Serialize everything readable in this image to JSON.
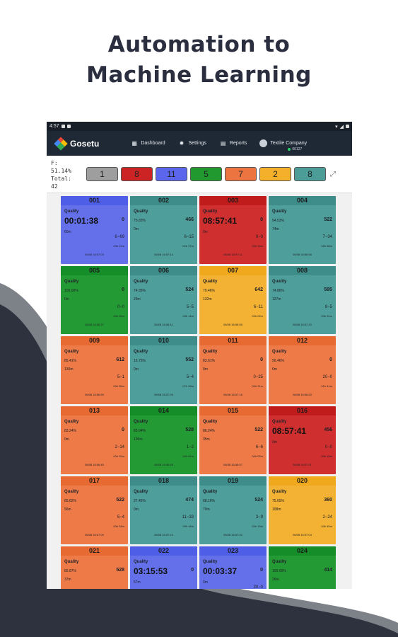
{
  "headline": {
    "line1": "Automation to",
    "line2": "Machine Learning"
  },
  "statusbar": {
    "time": "4:57"
  },
  "app": {
    "brand": "Gosetu",
    "nav": [
      {
        "label": "Dashboard",
        "icon": "grid-icon"
      },
      {
        "label": "Settings",
        "icon": "gear-icon"
      },
      {
        "label": "Reports",
        "icon": "report-icon"
      }
    ],
    "company": "Textile Company",
    "user_id": "00127"
  },
  "summary": {
    "f_line1": "F:",
    "f_line2": "51.14%",
    "total_label": "Total:",
    "total_value": "42",
    "chips": [
      {
        "value": "1",
        "color": "#9e9e9e"
      },
      {
        "value": "8",
        "color": "#cc2424"
      },
      {
        "value": "11",
        "color": "#5b66ec"
      },
      {
        "value": "5",
        "color": "#21992f"
      },
      {
        "value": "7",
        "color": "#ec7440"
      },
      {
        "value": "2",
        "color": "#f4b02a"
      },
      {
        "value": "8",
        "color": "#4c9c98"
      }
    ]
  },
  "cards": [
    {
      "id": "001",
      "color": "blue",
      "quality": "Quality",
      "timer": "00:01:38",
      "minutes": "60m",
      "count": "0",
      "ratio": "6−69",
      "dur": "03h 19m",
      "ts": "06/08 16:57:03"
    },
    {
      "id": "002",
      "color": "teal",
      "quality": "Quality",
      "pct": "75.82%",
      "minutes": "0m",
      "count": "466",
      "ratio": "6−15",
      "dur": "02h 37m",
      "ts": "06/08 16:57:14"
    },
    {
      "id": "003",
      "color": "red",
      "quality": "Quality",
      "timer": "08:57:41",
      "minutes": "0m",
      "count": "0",
      "ratio": "0−0",
      "dur": "09h 39m",
      "ts": "06/08 16:57:11"
    },
    {
      "id": "004",
      "color": "teal",
      "quality": "Quality",
      "pct": "94.53%",
      "minutes": "74m",
      "count": "522",
      "ratio": "7−34",
      "dur": "02h 58m",
      "ts": "06/08 16:56:58"
    },
    {
      "id": "005",
      "color": "green",
      "quality": "Quality",
      "pct": "100.00%",
      "minutes": "0m",
      "count": "0",
      "ratio": "0−0",
      "dur": "00h 00m",
      "ts": "06/08 16:56:37"
    },
    {
      "id": "006",
      "color": "teal",
      "quality": "Quality",
      "pct": "74.95%",
      "minutes": "29m",
      "count": "524",
      "ratio": "5−5",
      "dur": "03h 14m",
      "ts": "06/08 16:56:41"
    },
    {
      "id": "007",
      "color": "yellow",
      "quality": "Quality",
      "pct": "79.46%",
      "minutes": "132m",
      "count": "642",
      "ratio": "6−11",
      "dur": "03h 02m",
      "ts": "06/08 16:56:55"
    },
    {
      "id": "008",
      "color": "teal",
      "quality": "Quality",
      "pct": "74.86%",
      "minutes": "127m",
      "count": "595",
      "ratio": "8−5",
      "dur": "03h 31m",
      "ts": "06/08 16:57:10"
    },
    {
      "id": "009",
      "color": "orange",
      "quality": "Quality",
      "pct": "85.41%",
      "minutes": "130m",
      "count": "612",
      "ratio": "5−1",
      "dur": "00h 55m",
      "ts": "06/08 16:56:59"
    },
    {
      "id": "010",
      "color": "teal",
      "quality": "Quality",
      "pct": "16.75%",
      "minutes": "0m",
      "count": "552",
      "ratio": "5−4",
      "dur": "07h 26m",
      "ts": "06/08 16:57:29"
    },
    {
      "id": "011",
      "color": "orange",
      "quality": "Quality",
      "pct": "83.61%",
      "minutes": "0m",
      "count": "0",
      "ratio": "0−25",
      "dur": "00h 21m",
      "ts": "06/08 16:57:16"
    },
    {
      "id": "012",
      "color": "orange",
      "quality": "Quality",
      "pct": "56.46%",
      "minutes": "0m",
      "count": "0",
      "ratio": "20−0",
      "dur": "01h 41m",
      "ts": "06/08 16:56:53"
    },
    {
      "id": "013",
      "color": "orange",
      "quality": "Quality",
      "pct": "83.24%",
      "minutes": "0m",
      "count": "0",
      "ratio": "2−14",
      "dur": "00h 02m",
      "ts": "06/08 16:56:45"
    },
    {
      "id": "014",
      "color": "green",
      "quality": "Quality",
      "pct": "83.04%",
      "minutes": "136m",
      "count": "528",
      "ratio": "1−2",
      "dur": "00h 02m",
      "ts": "06/08 16:56:48"
    },
    {
      "id": "015",
      "color": "orange",
      "quality": "Quality",
      "pct": "86.24%",
      "minutes": "35m",
      "count": "522",
      "ratio": "6−6",
      "dur": "00h 02m",
      "ts": "06/08 16:56:57"
    },
    {
      "id": "016",
      "color": "red",
      "quality": "Quality",
      "timer": "08:57:41",
      "minutes": "0m",
      "count": "456",
      "ratio": "0−0",
      "dur": "09h 15m",
      "ts": "06/08 16:57:01"
    },
    {
      "id": "017",
      "color": "orange",
      "quality": "Quality",
      "pct": "85.82%",
      "minutes": "56m",
      "count": "522",
      "ratio": "5−4",
      "dur": "00h 34m",
      "ts": "06/08 16:57:09"
    },
    {
      "id": "018",
      "color": "teal",
      "quality": "Quality",
      "pct": "27.45%",
      "minutes": "0m",
      "count": "474",
      "ratio": "11−33",
      "dur": "09h 44m",
      "ts": "06/08 16:57:13"
    },
    {
      "id": "019",
      "color": "teal",
      "quality": "Quality",
      "pct": "68.16%",
      "minutes": "70m",
      "count": "524",
      "ratio": "3−9",
      "dur": "03h 19m",
      "ts": "06/08 16:57:02"
    },
    {
      "id": "020",
      "color": "yellow",
      "quality": "Quality",
      "pct": "75.65%",
      "minutes": "108m",
      "count": "360",
      "ratio": "2−24",
      "dur": "03h 45m",
      "ts": "06/08 16:57:04"
    },
    {
      "id": "021",
      "color": "orange",
      "quality": "Quality",
      "pct": "85.87%",
      "minutes": "37m",
      "count": "528",
      "ratio": "",
      "dur": "",
      "ts": ""
    },
    {
      "id": "022",
      "color": "blue",
      "quality": "Quality",
      "timer": "03:15:53",
      "minutes": "57m",
      "count": "0",
      "ratio": "",
      "dur": "",
      "ts": ""
    },
    {
      "id": "023",
      "color": "blue",
      "quality": "Quality",
      "timer": "00:03:37",
      "minutes": "0m",
      "count": "0",
      "ratio": "30−0",
      "dur": "",
      "ts": ""
    },
    {
      "id": "024",
      "color": "green",
      "quality": "Quality",
      "pct": "100.00%",
      "minutes": "26m",
      "count": "414",
      "ratio": "",
      "dur": "",
      "ts": ""
    }
  ]
}
